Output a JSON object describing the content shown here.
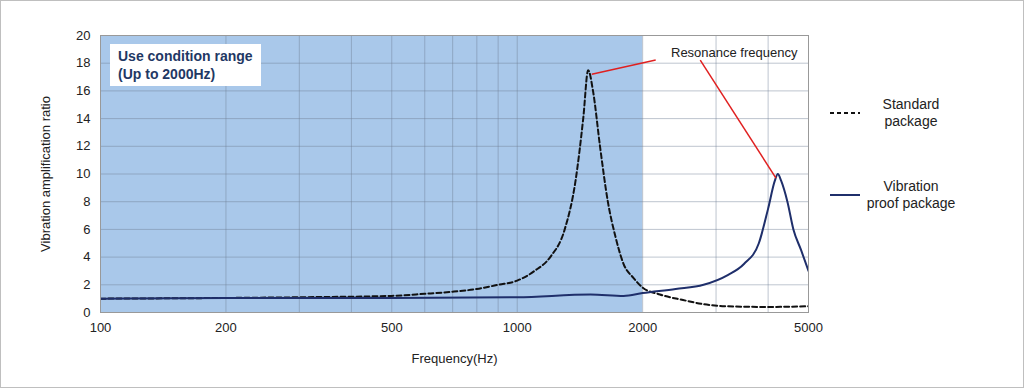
{
  "chart_data": {
    "type": "line",
    "x_label": "Frequency(Hz)",
    "y_label": "Vibration amplification ratio",
    "log": "x",
    "grid": true,
    "legend": "right",
    "xlim": [
      100,
      5000
    ],
    "xticks": [
      100,
      200,
      500,
      1000,
      2000,
      5000
    ],
    "ylim": [
      0,
      20
    ],
    "yticks": [
      0,
      2,
      4,
      6,
      8,
      10,
      12,
      14,
      16,
      18,
      20
    ],
    "shaded_region": {
      "text": [
        "Use condition range",
        "(Up to 2000Hz)"
      ],
      "xlim": [
        100,
        2000
      ],
      "color": "#a9c8ea"
    },
    "annotation": {
      "text": "Resonance frequency",
      "color": "#e02020",
      "points": [
        [
          1480,
          17.5
        ],
        [
          4220,
          10
        ]
      ]
    },
    "series": [
      {
        "name": "Standard package",
        "color": "#111111",
        "line_style": "dashed",
        "x": [
          100,
          200,
          300,
          500,
          600,
          700,
          800,
          900,
          1000,
          1100,
          1200,
          1300,
          1380,
          1440,
          1480,
          1520,
          1580,
          1650,
          1720,
          1800,
          1900,
          2000,
          2200,
          2500,
          2800,
          3200,
          4000,
          5000
        ],
        "values": [
          1.0,
          1.05,
          1.1,
          1.2,
          1.35,
          1.5,
          1.7,
          2.0,
          2.3,
          3.0,
          4.0,
          6.0,
          9.5,
          14.0,
          17.5,
          16.0,
          12.0,
          8.0,
          5.5,
          3.5,
          2.5,
          1.8,
          1.3,
          0.9,
          0.6,
          0.45,
          0.4,
          0.45
        ]
      },
      {
        "name": "Vibration proof package",
        "color": "#1f2f6b",
        "line_style": "solid",
        "x": [
          100,
          200,
          500,
          1000,
          1500,
          1800,
          2000,
          2400,
          2800,
          3200,
          3500,
          3800,
          4000,
          4150,
          4220,
          4300,
          4450,
          4600,
          4800,
          5000
        ],
        "values": [
          1.0,
          1.05,
          1.05,
          1.1,
          1.3,
          1.2,
          1.4,
          1.7,
          2.0,
          2.7,
          3.5,
          5.0,
          7.5,
          9.5,
          10.0,
          9.5,
          8.0,
          6.0,
          4.5,
          3.0
        ]
      }
    ]
  }
}
